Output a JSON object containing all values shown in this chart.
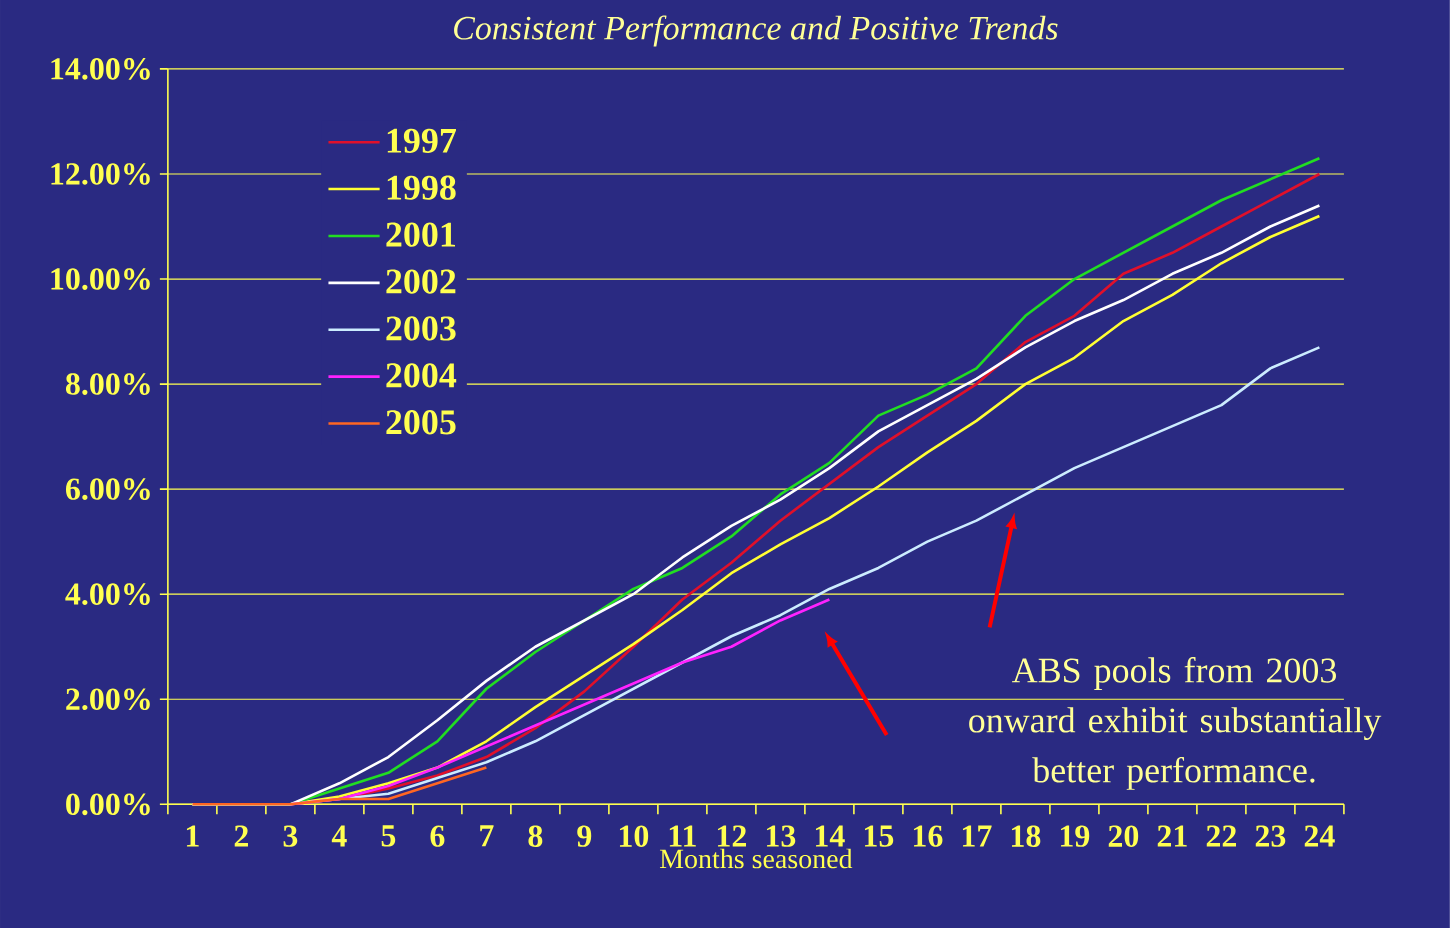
{
  "chart_data": {
    "type": "line",
    "title": "Consistent Performance and Positive Trends",
    "xlabel": "Months seasoned",
    "categories": [
      "1",
      "2",
      "3",
      "4",
      "5",
      "6",
      "7",
      "8",
      "9",
      "10",
      "11",
      "12",
      "13",
      "14",
      "15",
      "16",
      "17",
      "18",
      "19",
      "20",
      "21",
      "22",
      "23",
      "24"
    ],
    "series": [
      {
        "name": "1997",
        "color": "#e0102a",
        "values": [
          null,
          null,
          0,
          0.1,
          0.3,
          0.55,
          0.9,
          1.45,
          2.15,
          3.0,
          3.9,
          4.6,
          5.4,
          6.1,
          6.8,
          7.4,
          8.0,
          8.8,
          9.3,
          10.1,
          10.5,
          11.0,
          11.5,
          12.0
        ]
      },
      {
        "name": "1998",
        "color": "#ffff33",
        "values": [
          0,
          0,
          0,
          0.15,
          0.4,
          0.7,
          1.2,
          1.85,
          2.45,
          3.05,
          3.7,
          4.4,
          4.95,
          5.45,
          6.05,
          6.7,
          7.3,
          8.0,
          8.5,
          9.2,
          9.7,
          10.3,
          10.8,
          11.2
        ]
      },
      {
        "name": "2001",
        "color": "#22dd22",
        "values": [
          0,
          0,
          0,
          0.3,
          0.6,
          1.2,
          2.2,
          2.9,
          3.5,
          4.1,
          4.5,
          5.1,
          5.9,
          6.5,
          7.4,
          7.8,
          8.3,
          9.3,
          10.0,
          10.5,
          11.0,
          11.5,
          11.9,
          12.3
        ]
      },
      {
        "name": "2002",
        "color": "#ffffff",
        "values": [
          0,
          0,
          0,
          0.4,
          0.9,
          1.6,
          2.35,
          3.0,
          3.5,
          4.0,
          4.7,
          5.3,
          5.8,
          6.4,
          7.1,
          7.6,
          8.1,
          8.7,
          9.2,
          9.6,
          10.1,
          10.5,
          11.0,
          11.4
        ]
      },
      {
        "name": "2003",
        "color": "#ccecff",
        "values": [
          0,
          0,
          0,
          0.1,
          0.2,
          0.5,
          0.8,
          1.2,
          1.7,
          2.2,
          2.7,
          3.2,
          3.6,
          4.1,
          4.5,
          5.0,
          5.4,
          5.9,
          6.4,
          6.8,
          7.2,
          7.6,
          8.3,
          8.7
        ]
      },
      {
        "name": "2004",
        "color": "#ff22ff",
        "values": [
          null,
          null,
          0,
          0.1,
          0.35,
          0.7,
          1.1,
          1.5,
          1.9,
          2.3,
          2.7,
          3.0,
          3.5,
          3.9,
          null,
          null,
          null,
          null,
          null,
          null,
          null,
          null,
          null,
          null
        ]
      },
      {
        "name": "2005",
        "color": "#ff6622",
        "values": [
          0,
          0,
          0,
          0.1,
          0.1,
          0.4,
          0.7,
          null,
          null,
          null,
          null,
          null,
          null,
          null,
          null,
          null,
          null,
          null,
          null,
          null,
          null,
          null,
          null,
          null
        ]
      }
    ],
    "ylim": [
      0,
      14
    ],
    "yticks": [
      {
        "value": 0,
        "label": "0.00%"
      },
      {
        "value": 2,
        "label": "2.00%"
      },
      {
        "value": 4,
        "label": "4.00%"
      },
      {
        "value": 6,
        "label": "6.00%"
      },
      {
        "value": 8,
        "label": "8.00%"
      },
      {
        "value": 10,
        "label": "10.00%"
      },
      {
        "value": 12,
        "label": "12.00%"
      },
      {
        "value": 14,
        "label": "14.00%"
      }
    ],
    "grid": "y",
    "legend": "top left",
    "annotations": [
      "ABS pools from 2003 onward exhibit substantially better performance."
    ]
  }
}
